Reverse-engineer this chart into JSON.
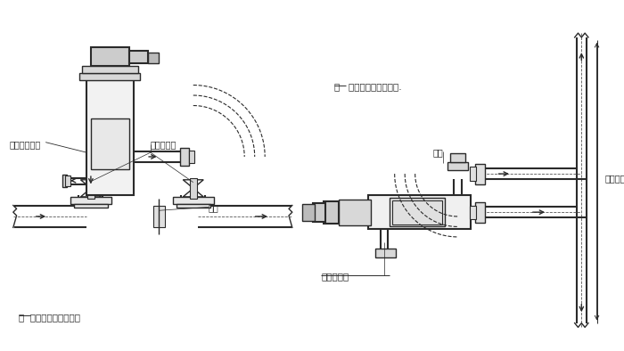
{
  "bg_color": "#ffffff",
  "lc": "#2a2a2a",
  "dc": "#555555",
  "fig_width": 7.0,
  "fig_height": 3.94,
  "dpi": 100,
  "left": {
    "note": "注  图中箭头为水流方向",
    "label_filter": "全自动过滤机",
    "label_valve": "切断用阀门",
    "label_bypass": "旁路"
  },
  "right": {
    "note": "注   图中箭头为水流方向.",
    "label_drain": "排污口向下",
    "label_valve": "阀门",
    "label_bypass": "竖直旁路"
  }
}
